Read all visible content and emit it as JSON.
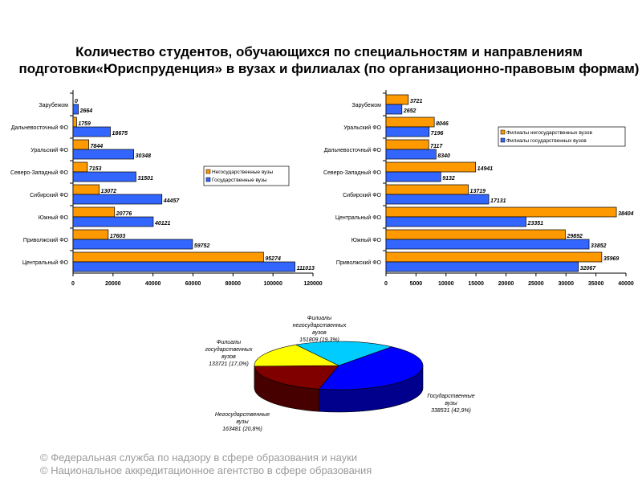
{
  "title": "Количество студентов, обучающихся по специальностям и направлениям подготовки«Юриспруденция» в вузах и филиалах (по организационно-правовым формам)",
  "footer": [
    "© Федеральная служба по надзору в сфере образования и науки",
    "© Национальное аккредитационное агентство в сфере образования"
  ],
  "chart_data": [
    {
      "type": "bar",
      "orientation": "horizontal",
      "categories": [
        "Зарубежом",
        "Дальневосточный ФО",
        "Уральский ФО",
        "Северо-Западный ФО",
        "Сибирский ФО",
        "Южный ФО",
        "Приволжский ФО",
        "Центральный ФО"
      ],
      "series": [
        {
          "name": "Негосударственные вузы",
          "color": "#FF9900",
          "values": [
            0,
            1759,
            7844,
            7153,
            13072,
            20776,
            17603,
            95274
          ]
        },
        {
          "name": "Государственные вузы",
          "color": "#3366FF",
          "values": [
            2664,
            18675,
            30348,
            31501,
            44457,
            40121,
            59752,
            111013
          ]
        }
      ],
      "xlim": [
        0,
        120000
      ],
      "ticks": [
        "0",
        "20000",
        "40000",
        "60000",
        "80000",
        "100000",
        "120000"
      ],
      "legend": "right",
      "grid": false
    },
    {
      "type": "bar",
      "orientation": "horizontal",
      "categories": [
        "Зарубежом",
        "Уральский ФО",
        "Дальневосточный ФО",
        "Северо-Западный ФО",
        "Сибирский ФО",
        "Центральный ФО",
        "Южный ФО",
        "Приволжский ФО"
      ],
      "series": [
        {
          "name": "Филиалы негосударственных вузов",
          "color": "#FF9900",
          "values": [
            3721,
            8046,
            7117,
            14941,
            13719,
            38404,
            29892,
            35969
          ]
        },
        {
          "name": "Филиалы государственных вузов",
          "color": "#3366FF",
          "values": [
            2652,
            7196,
            8340,
            9132,
            17131,
            23351,
            33852,
            32067
          ]
        }
      ],
      "xlim": [
        0,
        40000
      ],
      "ticks": [
        "0",
        "5000",
        "10000",
        "15000",
        "20000",
        "25000",
        "30000",
        "35000",
        "40000"
      ],
      "legend": "top-right",
      "grid": false
    },
    {
      "type": "pie",
      "style": "3d",
      "slices": [
        {
          "label": [
            "Государственные",
            "вузы"
          ],
          "value": 338531,
          "text": "338531 (42,9%)",
          "percent": 42.9,
          "color": "#0000FF"
        },
        {
          "label": [
            "Негосударственные",
            "вузы"
          ],
          "value": 163481,
          "text": "163481 (20,8%)",
          "percent": 20.8,
          "color": "#800000"
        },
        {
          "label": [
            "Филиалы",
            "государственных",
            "вузов"
          ],
          "value": 133721,
          "text": "133721 (17,0%)",
          "percent": 17.0,
          "color": "#FFFF00"
        },
        {
          "label": [
            "Филиалы",
            "негосударственных",
            "вузов"
          ],
          "value": 151809,
          "text": "151809 (19,3%)",
          "percent": 19.3,
          "color": "#00CCFF"
        }
      ]
    }
  ]
}
